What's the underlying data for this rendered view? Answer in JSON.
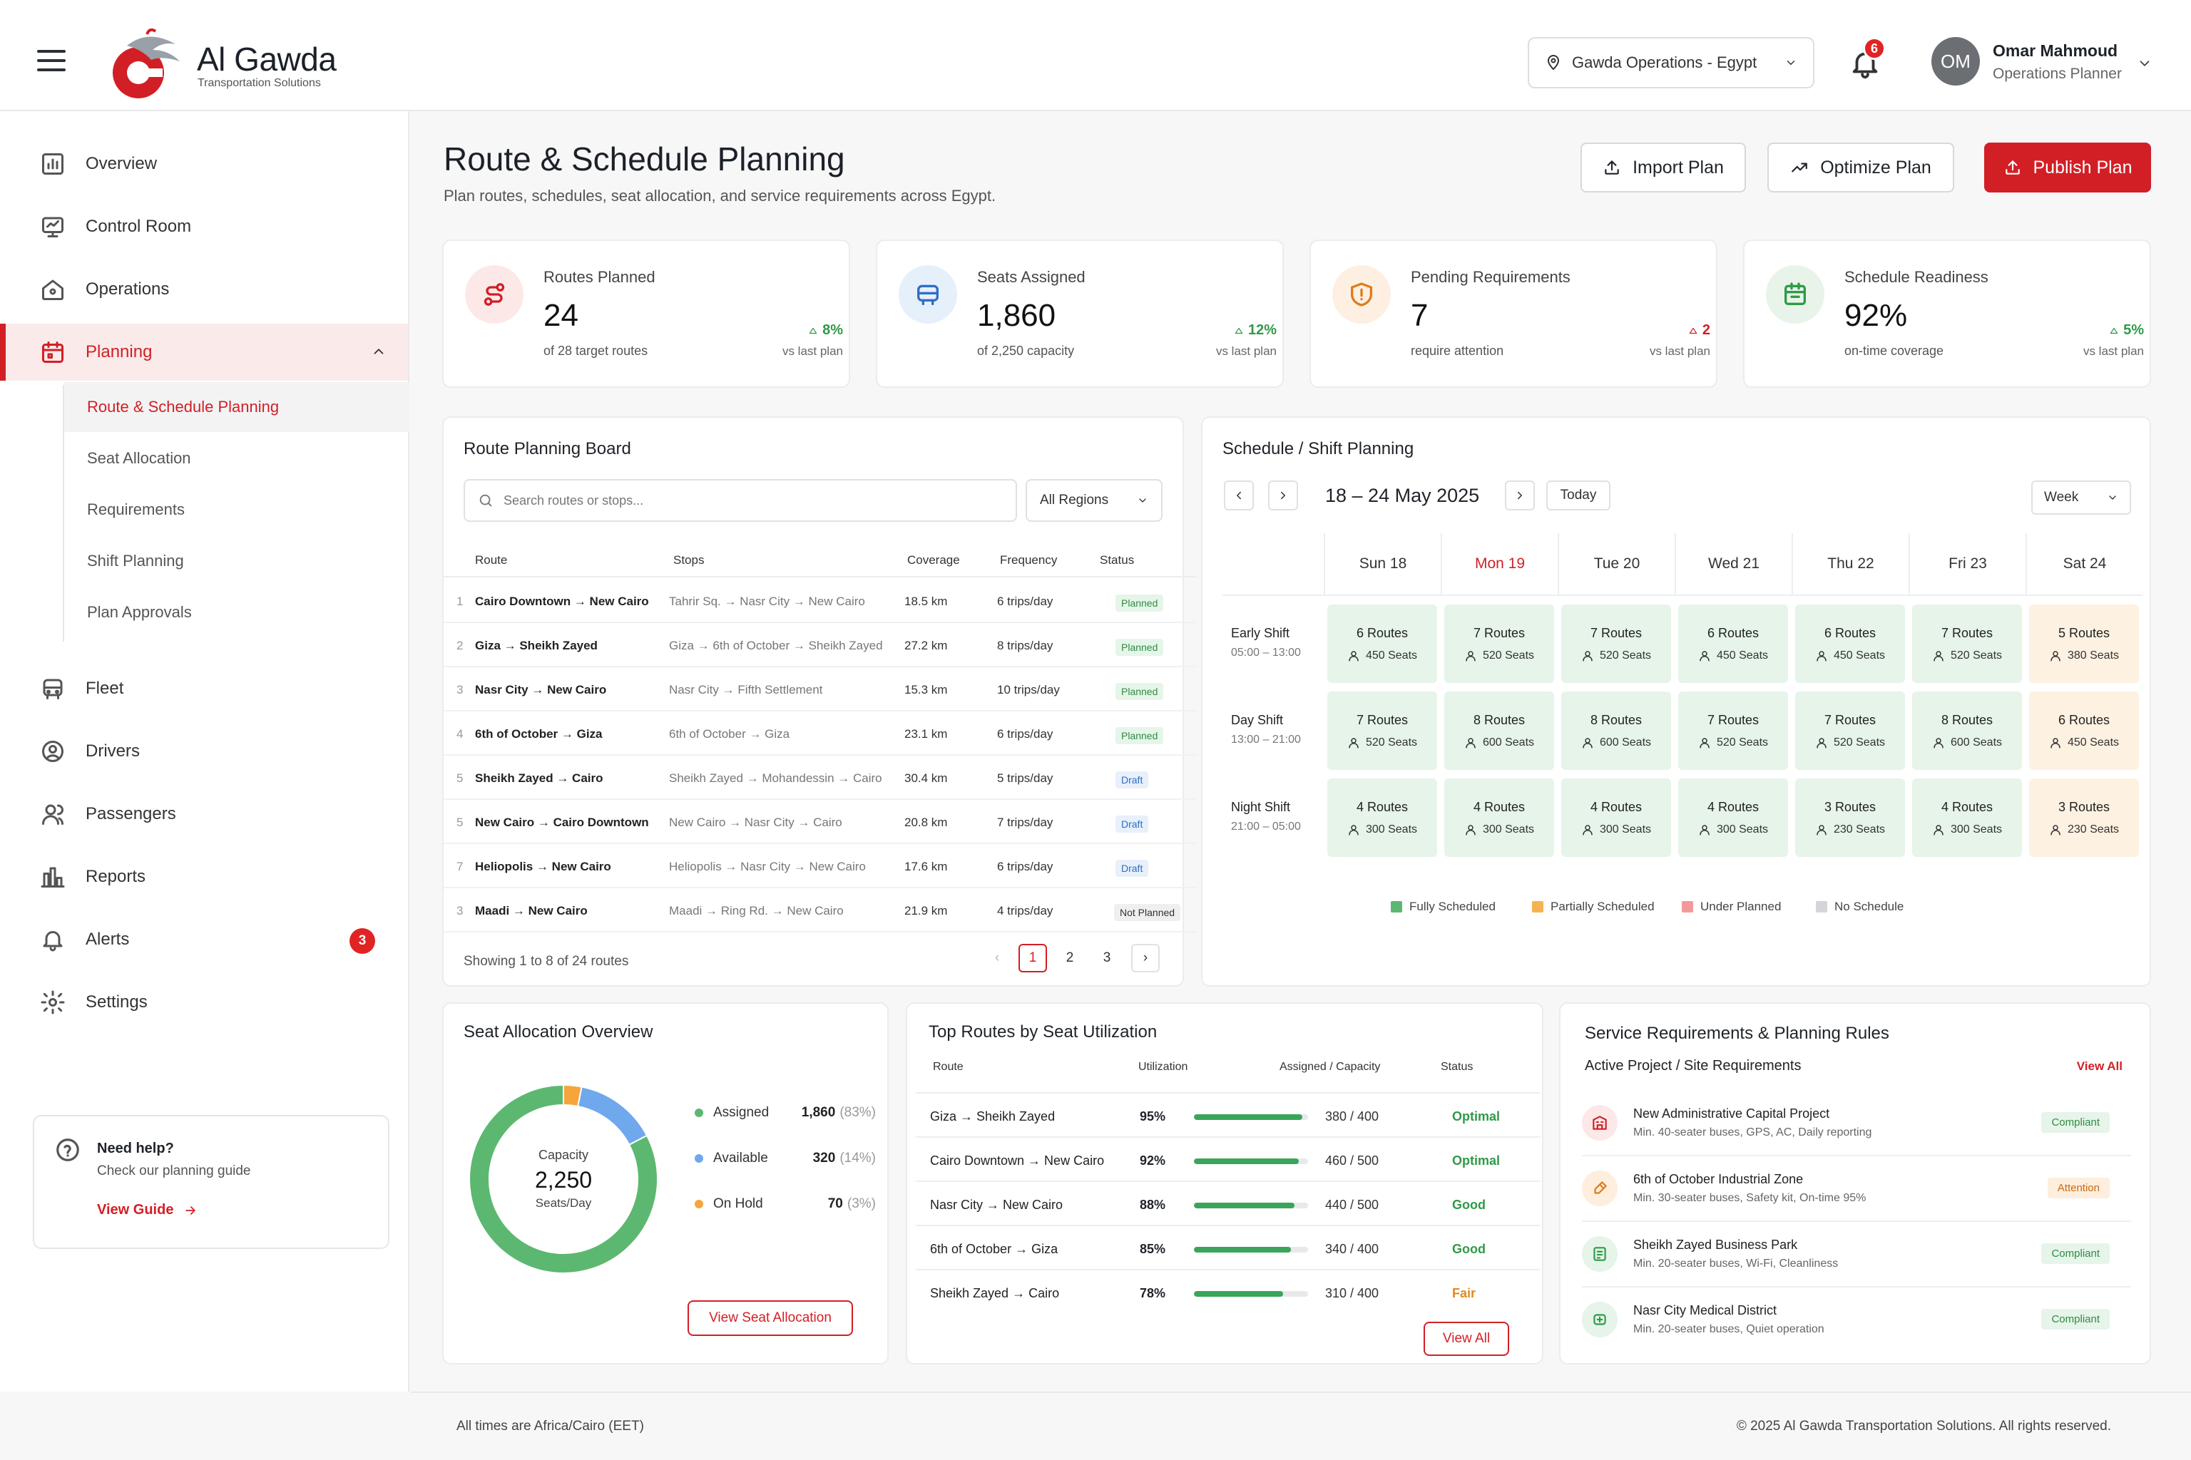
{
  "brand": {
    "name": "Al Gawda",
    "tagline": "Transportation Solutions",
    "accent": "#d21f25"
  },
  "header": {
    "region_selector": "Gawda Operations - Egypt",
    "notifications_count": "6",
    "user": {
      "initials": "OM",
      "name": "Omar Mahmoud",
      "role": "Operations Planner"
    }
  },
  "sidebar": {
    "items": [
      {
        "label": "Overview",
        "icon": "overview-icon"
      },
      {
        "label": "Control Room",
        "icon": "monitor-icon"
      },
      {
        "label": "Operations",
        "icon": "home-icon"
      },
      {
        "label": "Planning",
        "icon": "calendar-icon"
      },
      {
        "label": "Fleet",
        "icon": "bus-icon"
      },
      {
        "label": "Drivers",
        "icon": "driver-icon"
      },
      {
        "label": "Passengers",
        "icon": "users-icon"
      },
      {
        "label": "Reports",
        "icon": "bar-chart-icon"
      },
      {
        "label": "Alerts",
        "icon": "bell-icon",
        "badge": "3"
      },
      {
        "label": "Settings",
        "icon": "gear-icon"
      }
    ],
    "planning_sub": [
      "Route & Schedule Planning",
      "Seat Allocation",
      "Requirements",
      "Shift Planning",
      "Plan Approvals"
    ],
    "help": {
      "title": "Need help?",
      "subtitle": "Check our planning guide",
      "link": "View Guide"
    }
  },
  "page": {
    "title": "Route & Schedule Planning",
    "subtitle": "Plan routes, schedules, seat allocation, and service requirements across Egypt.",
    "actions": {
      "import": "Import Plan",
      "optimize": "Optimize Plan",
      "publish": "Publish Plan"
    }
  },
  "kpis": [
    {
      "label": "Routes Planned",
      "value": "24",
      "sub": "of 28 target routes",
      "delta": "8%",
      "delta_label": "vs last plan",
      "color": "#fde8e8"
    },
    {
      "label": "Seats Assigned",
      "value": "1,860",
      "sub": "of 2,250 capacity",
      "delta": "12%",
      "delta_label": "vs last plan",
      "color": "#e6f0fb"
    },
    {
      "label": "Pending Requirements",
      "value": "7",
      "sub": "require attention",
      "delta": "2",
      "delta_label": "vs last plan",
      "color": "#fdf0e2"
    },
    {
      "label": "Schedule Readiness",
      "value": "92%",
      "sub": "on-time coverage",
      "delta": "5%",
      "delta_label": "vs last plan",
      "color": "#e8f4ea"
    }
  ],
  "route_board": {
    "title": "Route Planning Board",
    "search_placeholder": "Search routes or stops...",
    "region_filter": "All Regions",
    "columns": [
      "Route",
      "Stops",
      "Coverage",
      "Frequency",
      "Status"
    ],
    "rows": [
      {
        "n": "1",
        "route": "Cairo Downtown → New Cairo",
        "stops": "Tahrir Sq. → Nasr City → New Cairo",
        "coverage": "18.5 km",
        "freq": "6 trips/day",
        "status": "Planned",
        "kind": "planned"
      },
      {
        "n": "2",
        "route": "Giza → Sheikh Zayed",
        "stops": "Giza → 6th of October → Sheikh Zayed",
        "coverage": "27.2 km",
        "freq": "8 trips/day",
        "status": "Planned",
        "kind": "planned"
      },
      {
        "n": "3",
        "route": "Nasr City → New Cairo",
        "stops": "Nasr City → Fifth Settlement",
        "coverage": "15.3 km",
        "freq": "10 trips/day",
        "status": "Planned",
        "kind": "planned"
      },
      {
        "n": "4",
        "route": "6th of October → Giza",
        "stops": "6th of October → Giza",
        "coverage": "23.1 km",
        "freq": "6 trips/day",
        "status": "Planned",
        "kind": "planned"
      },
      {
        "n": "5",
        "route": "Sheikh Zayed → Cairo",
        "stops": "Sheikh Zayed → Mohandessin → Cairo",
        "coverage": "30.4 km",
        "freq": "5 trips/day",
        "status": "Draft",
        "kind": "draft"
      },
      {
        "n": "5",
        "route": "New Cairo → Cairo Downtown",
        "stops": "New Cairo → Nasr City → Cairo",
        "coverage": "20.8 km",
        "freq": "7 trips/day",
        "status": "Draft",
        "kind": "draft"
      },
      {
        "n": "7",
        "route": "Heliopolis → New Cairo",
        "stops": "Heliopolis → Nasr City → New Cairo",
        "coverage": "17.6 km",
        "freq": "6 trips/day",
        "status": "Draft",
        "kind": "draft"
      },
      {
        "n": "3",
        "route": "Maadi → New Cairo",
        "stops": "Maadi → Ring Rd. → New Cairo",
        "coverage": "21.9 km",
        "freq": "4 trips/day",
        "status": "Not Planned",
        "kind": "notp"
      }
    ],
    "showing": "Showing 1 to 8 of 24 routes",
    "pages": [
      "1",
      "2",
      "3"
    ]
  },
  "schedule": {
    "title": "Schedule / Shift Planning",
    "range": "18 – 24 May 2025",
    "today": "Today",
    "view": "Week",
    "days": [
      "Sun 18",
      "Mon 19",
      "Tue 20",
      "Wed 21",
      "Thu 22",
      "Fri 23",
      "Sat 24"
    ],
    "shifts": [
      {
        "name": "Early Shift",
        "time": "05:00 – 13:00",
        "cells": [
          {
            "r": "6 Routes",
            "s": "450 Seats",
            "k": "f"
          },
          {
            "r": "7 Routes",
            "s": "520 Seats",
            "k": "f"
          },
          {
            "r": "7 Routes",
            "s": "520 Seats",
            "k": "f"
          },
          {
            "r": "6 Routes",
            "s": "450 Seats",
            "k": "f"
          },
          {
            "r": "6 Routes",
            "s": "450 Seats",
            "k": "f"
          },
          {
            "r": "7 Routes",
            "s": "520 Seats",
            "k": "f"
          },
          {
            "r": "5 Routes",
            "s": "380 Seats",
            "k": "p"
          }
        ]
      },
      {
        "name": "Day Shift",
        "time": "13:00 – 21:00",
        "cells": [
          {
            "r": "7 Routes",
            "s": "520 Seats",
            "k": "f"
          },
          {
            "r": "8 Routes",
            "s": "600 Seats",
            "k": "f"
          },
          {
            "r": "8 Routes",
            "s": "600 Seats",
            "k": "f"
          },
          {
            "r": "7 Routes",
            "s": "520 Seats",
            "k": "f"
          },
          {
            "r": "7 Routes",
            "s": "520 Seats",
            "k": "f"
          },
          {
            "r": "8 Routes",
            "s": "600 Seats",
            "k": "f"
          },
          {
            "r": "6 Routes",
            "s": "450 Seats",
            "k": "p"
          }
        ]
      },
      {
        "name": "Night Shift",
        "time": "21:00 – 05:00",
        "cells": [
          {
            "r": "4 Routes",
            "s": "300 Seats",
            "k": "f"
          },
          {
            "r": "4 Routes",
            "s": "300 Seats",
            "k": "f"
          },
          {
            "r": "4 Routes",
            "s": "300 Seats",
            "k": "f"
          },
          {
            "r": "4 Routes",
            "s": "300 Seats",
            "k": "f"
          },
          {
            "r": "3 Routes",
            "s": "230 Seats",
            "k": "f"
          },
          {
            "r": "4 Routes",
            "s": "300 Seats",
            "k": "f"
          },
          {
            "r": "3 Routes",
            "s": "230 Seats",
            "k": "p"
          }
        ]
      }
    ],
    "legend": [
      {
        "label": "Fully Scheduled",
        "color": "#5cb870"
      },
      {
        "label": "Partially Scheduled",
        "color": "#f5b450"
      },
      {
        "label": "Under Planned",
        "color": "#f29a9a"
      },
      {
        "label": "No Schedule",
        "color": "#d4d5d8"
      }
    ]
  },
  "seat_allocation": {
    "title": "Seat Allocation Overview",
    "center_label": "Capacity",
    "center_value": "2,250",
    "center_unit": "Seats/Day",
    "items": [
      {
        "label": "Assigned",
        "value": "1,860",
        "pct": "(83%)",
        "color": "#5cb870",
        "n": 1860
      },
      {
        "label": "Available",
        "value": "320",
        "pct": "(14%)",
        "color": "#6fa8ec",
        "n": 320
      },
      {
        "label": "On Hold",
        "value": "70",
        "pct": "(3%)",
        "color": "#f5a53a",
        "n": 70
      }
    ],
    "button": "View Seat Allocation"
  },
  "top_routes": {
    "title": "Top Routes by Seat Utilization",
    "columns": [
      "Route",
      "Utilization",
      "Assigned / Capacity",
      "Status"
    ],
    "rows": [
      {
        "route": "Giza → Sheikh Zayed",
        "util": "95%",
        "frac": 0.95,
        "ac": "380 / 400",
        "status": "Optimal",
        "color": "#2f9a48"
      },
      {
        "route": "Cairo Downtown → New Cairo",
        "util": "92%",
        "frac": 0.92,
        "ac": "460 / 500",
        "status": "Optimal",
        "color": "#2f9a48"
      },
      {
        "route": "Nasr City → New Cairo",
        "util": "88%",
        "frac": 0.88,
        "ac": "440 / 500",
        "status": "Good",
        "color": "#2f9a48"
      },
      {
        "route": "6th of October → Giza",
        "util": "85%",
        "frac": 0.85,
        "ac": "340 / 400",
        "status": "Good",
        "color": "#2f9a48"
      },
      {
        "route": "Sheikh Zayed → Cairo",
        "util": "78%",
        "frac": 0.78,
        "ac": "310 / 400",
        "status": "Fair",
        "color": "#e08a1e"
      }
    ],
    "button": "View All"
  },
  "service_reqs": {
    "title": "Service Requirements & Planning Rules",
    "subtitle": "Active Project / Site Requirements",
    "link": "View All",
    "rows": [
      {
        "name": "New Administrative Capital Project",
        "desc": "Min. 40-seater buses, GPS, AC, Daily reporting",
        "badge": "Compliant",
        "kind": "ok",
        "bg": "#fde8e8",
        "fg": "#d21f25"
      },
      {
        "name": "6th of October Industrial Zone",
        "desc": "Min. 30-seater buses, Safety kit, On-time 95%",
        "badge": "Attention",
        "kind": "at",
        "bg": "#fdeede",
        "fg": "#e07b1a"
      },
      {
        "name": "Sheikh Zayed Business Park",
        "desc": "Min. 20-seater buses, Wi-Fi, Cleanliness",
        "badge": "Compliant",
        "kind": "ok",
        "bg": "#e6f4e9",
        "fg": "#2f9a48"
      },
      {
        "name": "Nasr City Medical District",
        "desc": "Min. 20-seater buses, Quiet operation",
        "badge": "Compliant",
        "kind": "ok",
        "bg": "#e6f4e9",
        "fg": "#2f9a48"
      }
    ]
  },
  "footer": {
    "left": "All times are Africa/Cairo (EET)",
    "right": "© 2025 Al Gawda Transportation Solutions. All rights reserved."
  }
}
